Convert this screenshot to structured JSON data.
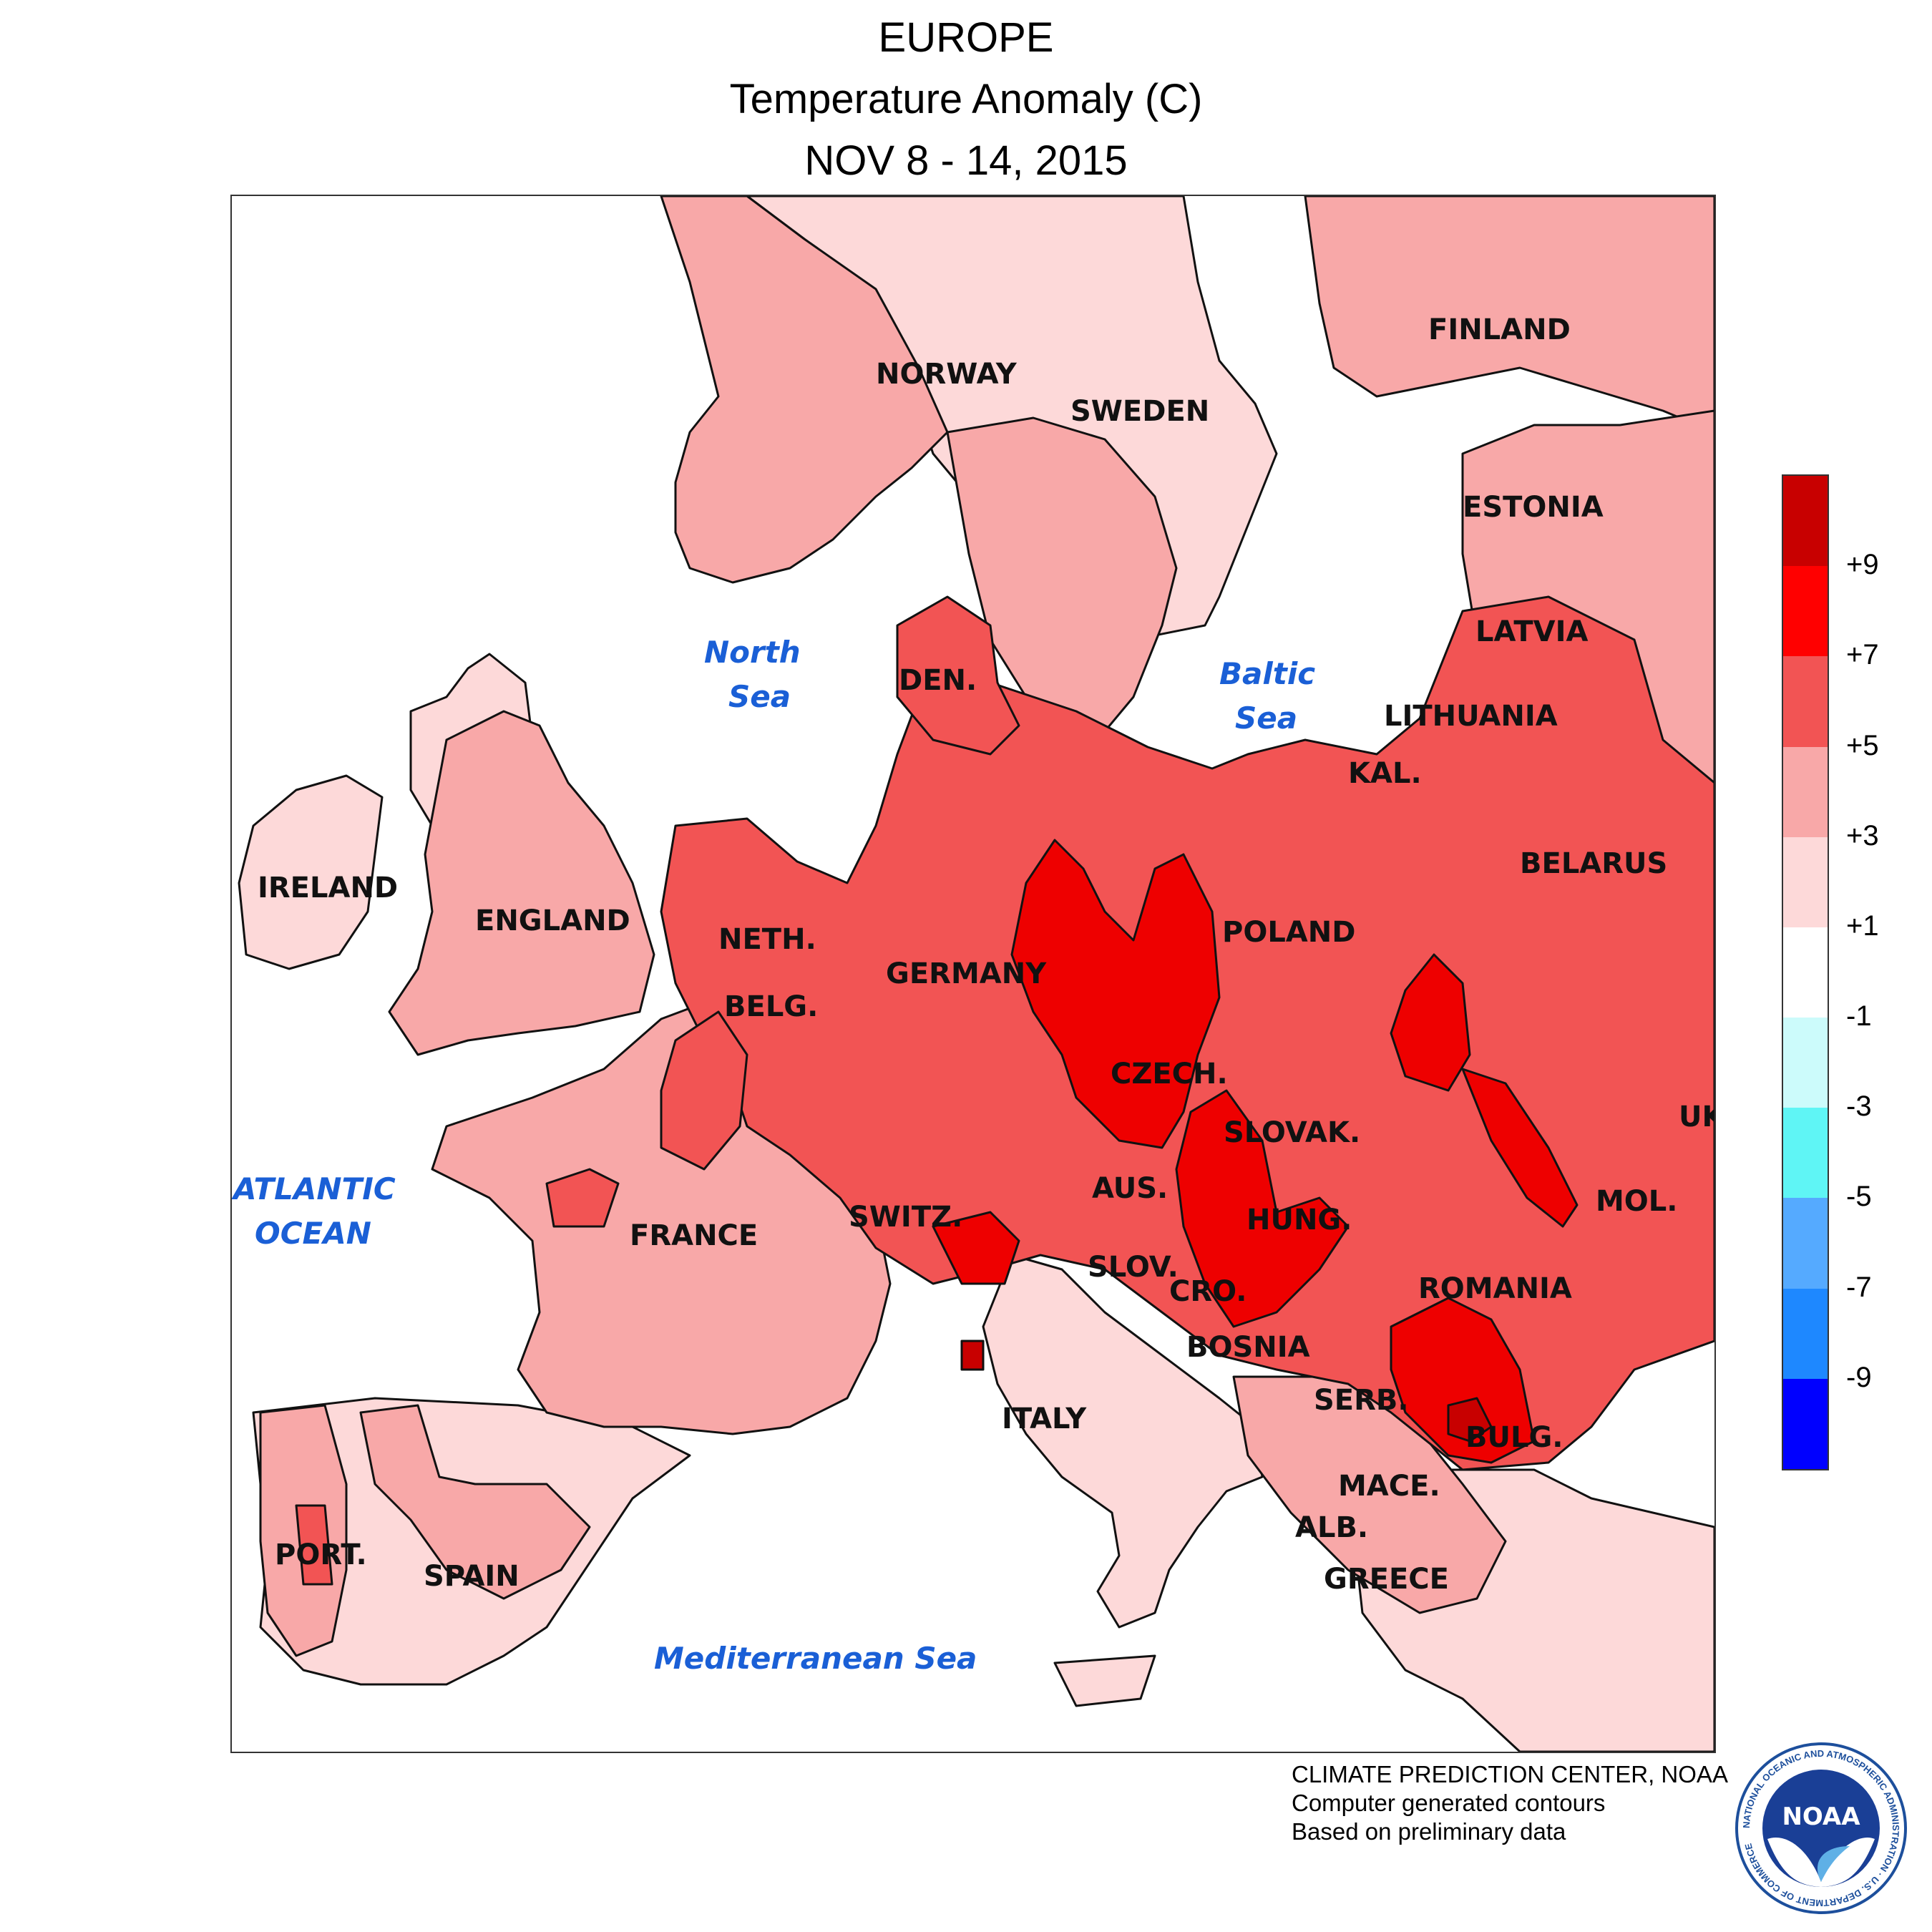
{
  "header": {
    "region": "EUROPE",
    "quantity": "Temperature Anomaly (C)",
    "period": "NOV 8 - 14, 2015"
  },
  "map": {
    "countries": [
      "NORWAY",
      "SWEDEN",
      "FINLAND",
      "ESTONIA",
      "LATVIA",
      "LITHUANIA",
      "KAL.",
      "BELARUS",
      "DEN.",
      "IRELAND",
      "ENGLAND",
      "NETH.",
      "BELG.",
      "GERMANY",
      "POLAND",
      "CZECH.",
      "SLOVAK.",
      "UK",
      "AUS.",
      "HUNG.",
      "MOL.",
      "SWITZ.",
      "FRANCE",
      "SLOV.",
      "CRO.",
      "ROMANIA",
      "BOSNIA",
      "SERB.",
      "ITALY",
      "BULG.",
      "MACE.",
      "ALB.",
      "GREECE",
      "PORT.",
      "SPAIN"
    ],
    "seas": {
      "north_sea": [
        "North",
        "Sea"
      ],
      "baltic_sea": [
        "Baltic",
        "Sea"
      ],
      "atlantic_ocean": [
        "ATLANTIC",
        "OCEAN"
      ],
      "mediterranean_sea": "Mediterranean Sea"
    },
    "colors": {
      "ocean": "#ffffff",
      "level_1_3": "#fdd9d9",
      "level_3_5": "#f8a8a8",
      "level_5_7": "#f25454",
      "level_7_9": "#ee0000",
      "level_9_plus": "#c80000",
      "contour": "#111111"
    }
  },
  "legend": {
    "ticks": [
      "+9",
      "+7",
      "+5",
      "+3",
      "+1",
      "-1",
      "-3",
      "-5",
      "-7",
      "-9"
    ],
    "colors": [
      "#c80000",
      "#ff0000",
      "#f25454",
      "#f8a8a8",
      "#fdd9d9",
      "#ffffff",
      "#ccfbfb",
      "#5ff5f5",
      "#55aaff",
      "#1e88ff",
      "#0000ff"
    ]
  },
  "credit": {
    "line1": "CLIMATE PREDICTION CENTER, NOAA",
    "line2": "Computer generated contours",
    "line3": "Based on preliminary data"
  },
  "logo": {
    "text": "NOAA",
    "ring_text": "NATIONAL OCEANIC AND ATMOSPHERIC ADMINISTRATION · U.S. DEPARTMENT OF COMMERCE"
  }
}
